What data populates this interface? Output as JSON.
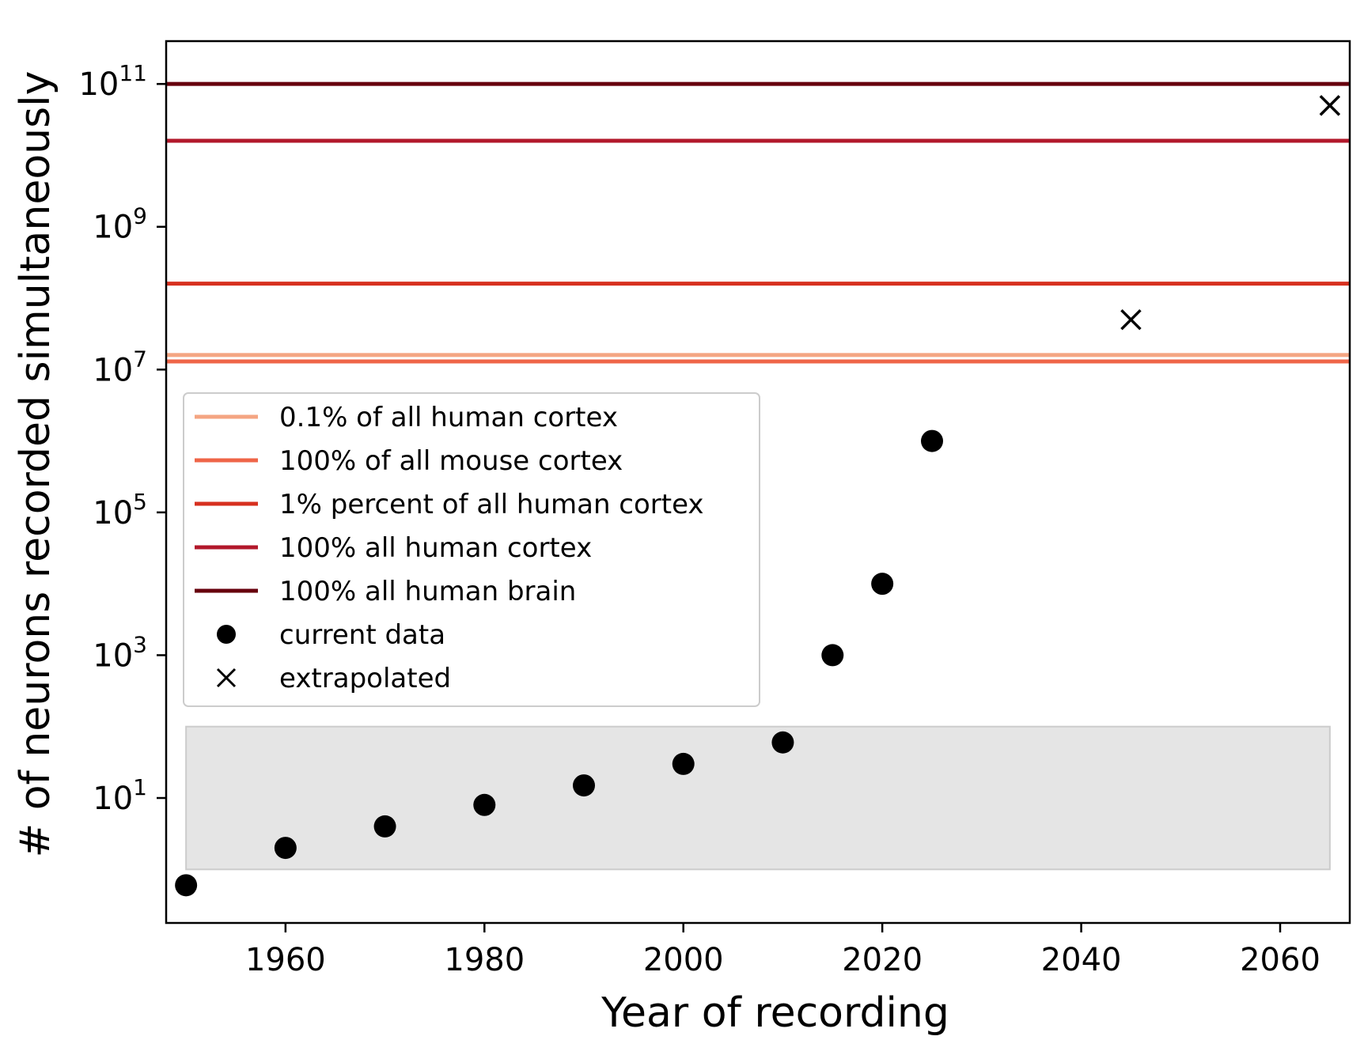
{
  "chart_data": {
    "type": "scatter",
    "title": "",
    "xlabel": "Year of recording",
    "ylabel": "# of neurons recorded simultaneously",
    "xlim": [
      1948,
      2067
    ],
    "ylim_log10": [
      -0.75,
      11.6
    ],
    "yscale": "log",
    "grid": false,
    "legend_position": "center-left",
    "xticks": [
      "1960",
      "1980",
      "2000",
      "2020",
      "2040",
      "2060"
    ],
    "yticks": [
      {
        "base": "10",
        "exp": "11"
      },
      {
        "base": "10",
        "exp": "9"
      },
      {
        "base": "10",
        "exp": "7"
      },
      {
        "base": "10",
        "exp": "5"
      },
      {
        "base": "10",
        "exp": "3"
      },
      {
        "base": "10",
        "exp": "1"
      }
    ],
    "shaded_band": {
      "y_range": [
        1,
        100
      ],
      "x_range": [
        1950,
        2065
      ],
      "color": "#e5e5e5"
    },
    "hlines": [
      {
        "name": "0.1% of all human cortex",
        "y": 16000000,
        "color": "#f4a582"
      },
      {
        "name": "100% of all mouse cortex",
        "y": 13000000,
        "color": "#ef6548"
      },
      {
        "name": "1% percent of all human cortex",
        "y": 160000000,
        "color": "#d7301f"
      },
      {
        "name": "100% all human cortex",
        "y": 16000000000,
        "color": "#b2182b"
      },
      {
        "name": "100% all human brain",
        "y": 100000000000,
        "color": "#67000d"
      }
    ],
    "series": [
      {
        "name": "current data",
        "marker": "circle",
        "color": "#000000",
        "points": [
          {
            "x": 1950,
            "y": 0.6
          },
          {
            "x": 1960,
            "y": 2
          },
          {
            "x": 1970,
            "y": 4
          },
          {
            "x": 1980,
            "y": 8
          },
          {
            "x": 1990,
            "y": 15
          },
          {
            "x": 2000,
            "y": 30
          },
          {
            "x": 2010,
            "y": 60
          },
          {
            "x": 2015,
            "y": 1000
          },
          {
            "x": 2020,
            "y": 10000
          },
          {
            "x": 2025,
            "y": 1000000
          }
        ]
      },
      {
        "name": "extrapolated",
        "marker": "x",
        "color": "#000000",
        "points": [
          {
            "x": 2045,
            "y": 50000000
          },
          {
            "x": 2065,
            "y": 50000000000
          }
        ]
      }
    ],
    "legend": [
      {
        "label": "0.1% of all human cortex",
        "kind": "line",
        "color": "#f4a582"
      },
      {
        "label": "100% of all mouse cortex",
        "kind": "line",
        "color": "#ef6548"
      },
      {
        "label": "1% percent of all human cortex",
        "kind": "line",
        "color": "#d7301f"
      },
      {
        "label": "100% all human cortex",
        "kind": "line",
        "color": "#b2182b"
      },
      {
        "label": "100% all human brain",
        "kind": "line",
        "color": "#67000d"
      },
      {
        "label": "current data",
        "kind": "circle",
        "color": "#000000"
      },
      {
        "label": "extrapolated",
        "kind": "x",
        "color": "#000000"
      }
    ]
  }
}
